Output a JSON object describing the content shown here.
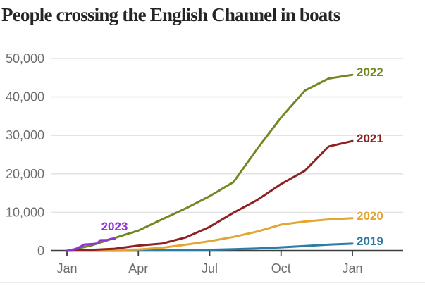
{
  "header": {
    "title": "People crossing the English Channel in boats"
  },
  "chart_data": {
    "type": "line",
    "title": "People crossing the English Channel in boats",
    "legend_position": "inline labels at line ends",
    "grid": "horizontal only",
    "x_axis": {
      "tick_labels": [
        "Jan",
        "Apr",
        "Jul",
        "Oct",
        "Jan"
      ],
      "tick_months": [
        0,
        3,
        6,
        9,
        12
      ],
      "range_months": [
        0,
        12
      ]
    },
    "y_axis": {
      "tick_labels": [
        "0",
        "10,000",
        "20,000",
        "30,000",
        "40,000",
        "50,000"
      ],
      "tick_values": [
        0,
        10000,
        20000,
        30000,
        40000,
        50000
      ],
      "range": [
        0,
        50000
      ]
    },
    "series": [
      {
        "name": "2019",
        "color": "#2c7da3",
        "x": [
          0,
          1,
          2,
          3,
          4,
          5,
          6,
          7,
          8,
          9,
          10,
          11,
          12
        ],
        "values": [
          0,
          30,
          60,
          100,
          140,
          190,
          260,
          400,
          600,
          900,
          1250,
          1600,
          1843
        ],
        "label_placement": "right"
      },
      {
        "name": "2020",
        "color": "#e3a534",
        "x": [
          0,
          1,
          2,
          3,
          4,
          5,
          6,
          7,
          8,
          9,
          10,
          11,
          12
        ],
        "values": [
          0,
          94,
          199,
          343,
          794,
          1600,
          2500,
          3600,
          5000,
          6800,
          7600,
          8150,
          8466
        ],
        "label_placement": "right"
      },
      {
        "name": "2021",
        "color": "#8e2121",
        "x": [
          0,
          1,
          2,
          3,
          4,
          5,
          6,
          7,
          8,
          9,
          10,
          11,
          12
        ],
        "values": [
          0,
          223,
          531,
          1362,
          1872,
          3491,
          6200,
          9900,
          13200,
          17341,
          20800,
          27125,
          28526
        ],
        "label_placement": "right"
      },
      {
        "name": "2022",
        "color": "#708821",
        "x": [
          0,
          1,
          2,
          3,
          4,
          5,
          6,
          7,
          8,
          9,
          10,
          11,
          12
        ],
        "values": [
          0,
          1341,
          3335,
          5250,
          8176,
          11047,
          14187,
          17870,
          26511,
          34674,
          41645,
          44789,
          45755
        ],
        "label_placement": "right"
      },
      {
        "name": "2023",
        "color": "#9331d6",
        "x": [
          0,
          0.2,
          0.45,
          0.74,
          0.9,
          1.1,
          1.27,
          1.4,
          1.65,
          1.75,
          1.85,
          2.0
        ],
        "values": [
          0,
          100,
          700,
          1650,
          1700,
          1800,
          1900,
          2770,
          2790,
          2900,
          3120,
          3140
        ],
        "label_placement": "above"
      }
    ]
  }
}
